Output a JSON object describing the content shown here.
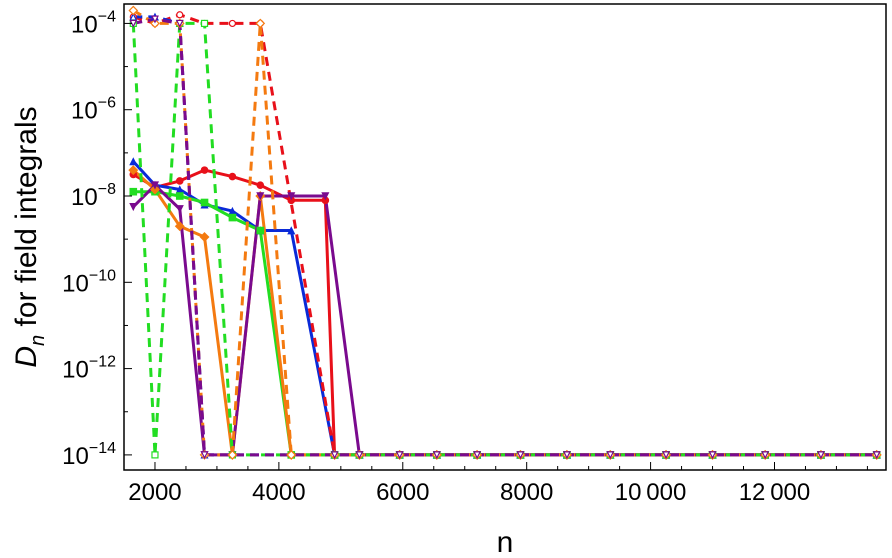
{
  "chart_data": {
    "type": "line",
    "xlabel": "n",
    "ylabel_main": "D",
    "ylabel_sub": "n",
    "ylabel_rest": " for field integrals",
    "y_scale": "log10",
    "xlim": [
      1500,
      13800
    ],
    "ylim_exp": [
      -14.35,
      -3.55
    ],
    "x_ticks": [
      {
        "value": 2000,
        "label": "2000"
      },
      {
        "value": 4000,
        "label": "4000"
      },
      {
        "value": 6000,
        "label": "6000"
      },
      {
        "value": 8000,
        "label": "8000"
      },
      {
        "value": 10000,
        "label": "10 000"
      },
      {
        "value": 12000,
        "label": "12 000"
      }
    ],
    "y_ticks": [
      {
        "exp": -4,
        "base": "10",
        "sup": "−4"
      },
      {
        "exp": -6,
        "base": "10",
        "sup": "−6"
      },
      {
        "exp": -8,
        "base": "10",
        "sup": "−8"
      },
      {
        "exp": -10,
        "base": "10",
        "sup": "−10"
      },
      {
        "exp": -12,
        "base": "10",
        "sup": "−12"
      },
      {
        "exp": -14,
        "base": "10",
        "sup": "−14"
      }
    ],
    "grid": false,
    "tail_x": [
      4900,
      5300,
      5950,
      6550,
      7200,
      7900,
      8650,
      9350,
      10250,
      11000,
      11850,
      12750,
      13650
    ],
    "series": [
      {
        "color": "#e8101a",
        "style": "solid",
        "marker": "filled-circle",
        "x": [
          1650,
          2000,
          2400,
          2800,
          3250,
          3700,
          4200,
          4750
        ],
        "y_exp": [
          -7.5,
          -7.8,
          -7.65,
          -7.4,
          -7.55,
          -7.75,
          -8.1,
          -8.1
        ]
      },
      {
        "color": "#0a2ad8",
        "style": "solid",
        "marker": "filled-triangle",
        "x": [
          1650,
          2000,
          2400,
          2800,
          3250,
          3700,
          4200
        ],
        "y_exp": [
          -7.2,
          -7.75,
          -7.85,
          -8.2,
          -8.35,
          -8.8,
          -8.8
        ]
      },
      {
        "color": "#22dd22",
        "style": "solid",
        "marker": "filled-square",
        "x": [
          1650,
          2000,
          2400,
          2800,
          3250,
          3700,
          4200
        ],
        "y_exp": [
          -7.9,
          -7.9,
          -8.0,
          -8.15,
          -8.5,
          -8.8,
          -14.0
        ]
      },
      {
        "color": "#f47a10",
        "style": "solid",
        "marker": "filled-diamond",
        "x": [
          1650,
          2000,
          2400,
          2800,
          3250,
          3700,
          4200
        ],
        "y_exp": [
          -7.4,
          -7.85,
          -8.7,
          -8.95,
          -14.0,
          -8.0,
          -14.0
        ]
      },
      {
        "color": "#7a0a8e",
        "style": "solid",
        "marker": "filled-triangle-down",
        "x": [
          1650,
          2000,
          2400,
          2800,
          3250,
          3700,
          4200,
          4750,
          5300
        ],
        "y_exp": [
          -8.25,
          -7.75,
          -8.3,
          -14.0,
          -14.0,
          -8.0,
          -8.0,
          -8.0,
          -14.0
        ]
      },
      {
        "color": "#e8101a",
        "style": "dashed",
        "marker": "open-circle",
        "x": [
          1650,
          2000,
          2400,
          2800,
          3250,
          3700
        ],
        "y_exp": [
          -3.85,
          -4.0,
          -3.8,
          -4.0,
          -4.0,
          -4.0
        ]
      },
      {
        "color": "#0a2ad8",
        "style": "dashed",
        "marker": "open-triangle",
        "x": [
          1650,
          2000,
          2400,
          2800
        ],
        "y_exp": [
          -3.85,
          -3.85,
          -4.0,
          -14.0
        ]
      },
      {
        "color": "#22dd22",
        "style": "dashed",
        "marker": "open-square",
        "x": [
          1650,
          2000,
          2400,
          2800,
          3250
        ],
        "y_exp": [
          -4.0,
          -14.0,
          -4.0,
          -4.0,
          -14.0
        ]
      },
      {
        "color": "#f47a10",
        "style": "dashed",
        "marker": "open-diamond",
        "x": [
          1650,
          2000,
          2400,
          2800,
          3250,
          3700,
          4200
        ],
        "y_exp": [
          -3.7,
          -4.0,
          -4.0,
          -14.0,
          -14.0,
          -4.0,
          -14.0
        ]
      },
      {
        "color": "#7a0a8e",
        "style": "dashed",
        "marker": "open-triangle-down",
        "x": [
          1650,
          2000,
          2400,
          2800
        ],
        "y_exp": [
          -4.0,
          -3.9,
          -4.0,
          -14.0
        ]
      }
    ]
  }
}
